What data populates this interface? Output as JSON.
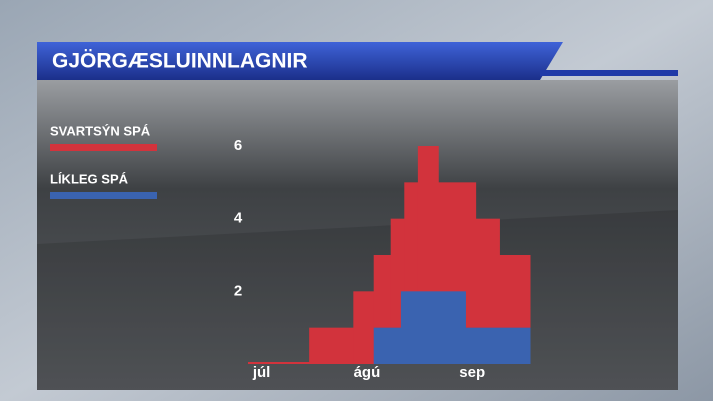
{
  "chart_data": {
    "type": "histogram",
    "title": "GJÖRGÆSLUINNLAGNIR",
    "series": [
      {
        "name": "SVARTSÝN SPÁ",
        "color": "#d2333c",
        "bins": [
          -4,
          14,
          27,
          33,
          38,
          42,
          46,
          52,
          63,
          70,
          79
        ],
        "values": [
          0,
          1,
          2,
          3,
          4,
          5,
          6,
          5,
          4,
          3
        ]
      },
      {
        "name": "LÍKLEG SPÁ",
        "color": "#3a63b0",
        "bins": [
          33,
          41,
          60,
          79
        ],
        "values": [
          1,
          2,
          1
        ]
      }
    ],
    "xlim": [
      -4,
      79
    ],
    "xticks": [
      {
        "value": 0,
        "label": "júl"
      },
      {
        "value": 31,
        "label": "ágú"
      },
      {
        "value": 62,
        "label": "sep"
      }
    ],
    "ylim": [
      0,
      6
    ],
    "yticks": [
      2,
      4,
      6
    ],
    "grid": false
  }
}
